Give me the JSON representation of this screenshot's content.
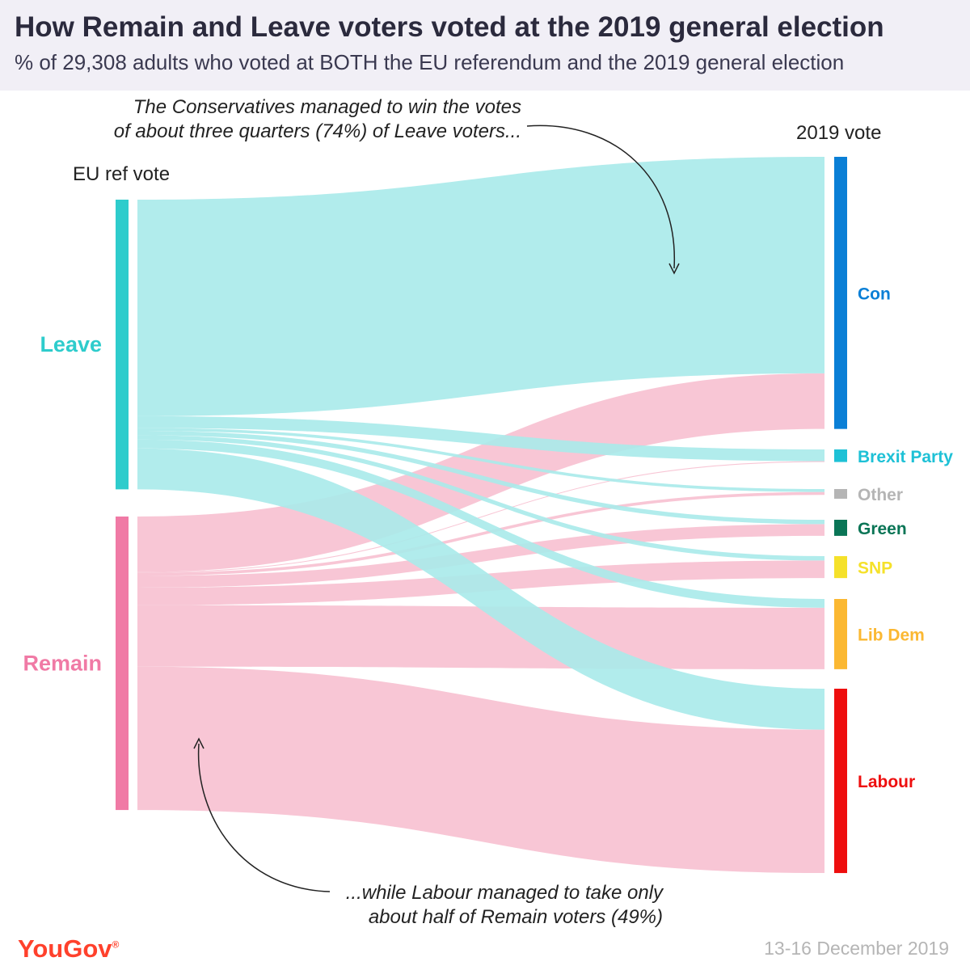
{
  "header": {
    "title": "How Remain and Leave voters voted at the 2019 general election",
    "subtitle": "% of 29,308 adults who voted at BOTH the EU referendum and the 2019 general election"
  },
  "columns": {
    "left_label": "EU ref vote",
    "right_label": "2019 vote"
  },
  "annotations": {
    "top_line1": "The Conservatives managed to win the votes",
    "top_line2": "of about three quarters (74%) of Leave voters...",
    "bottom_line1": "...while Labour managed to take only",
    "bottom_line2": "about half of Remain voters (49%)"
  },
  "footer": {
    "brand": "YouGov",
    "brand_mark": "®",
    "date": "13-16 December 2019"
  },
  "chart_data": {
    "type": "sankey",
    "units": "%",
    "sources": [
      {
        "name": "Leave",
        "color": "#2ecccc"
      },
      {
        "name": "Remain",
        "color": "#f07aa5"
      }
    ],
    "targets": [
      {
        "name": "Con",
        "color": "#0a7fd6"
      },
      {
        "name": "Brexit Party",
        "color": "#1ec1d6"
      },
      {
        "name": "Other",
        "color": "#b5b5b5"
      },
      {
        "name": "Green",
        "color": "#0a7556"
      },
      {
        "name": "SNP",
        "color": "#f5e12a"
      },
      {
        "name": "Lib Dem",
        "color": "#fbb832"
      },
      {
        "name": "Labour",
        "color": "#ee0e0e"
      }
    ],
    "link_colors": {
      "Leave": "#a8eaea",
      "Remain": "#f8c6d5"
    },
    "flows": [
      {
        "source": "Leave",
        "target": "Con",
        "value": 74
      },
      {
        "source": "Leave",
        "target": "Brexit Party",
        "value": 4
      },
      {
        "source": "Leave",
        "target": "Other",
        "value": 1
      },
      {
        "source": "Leave",
        "target": "Green",
        "value": 1.5
      },
      {
        "source": "Leave",
        "target": "SNP",
        "value": 1.5
      },
      {
        "source": "Leave",
        "target": "Lib Dem",
        "value": 3
      },
      {
        "source": "Leave",
        "target": "Labour",
        "value": 14
      },
      {
        "source": "Remain",
        "target": "Con",
        "value": 19
      },
      {
        "source": "Remain",
        "target": "Brexit Party",
        "value": 0.3
      },
      {
        "source": "Remain",
        "target": "Other",
        "value": 1
      },
      {
        "source": "Remain",
        "target": "Green",
        "value": 4
      },
      {
        "source": "Remain",
        "target": "SNP",
        "value": 6
      },
      {
        "source": "Remain",
        "target": "Lib Dem",
        "value": 21
      },
      {
        "source": "Remain",
        "target": "Labour",
        "value": 49
      }
    ]
  }
}
